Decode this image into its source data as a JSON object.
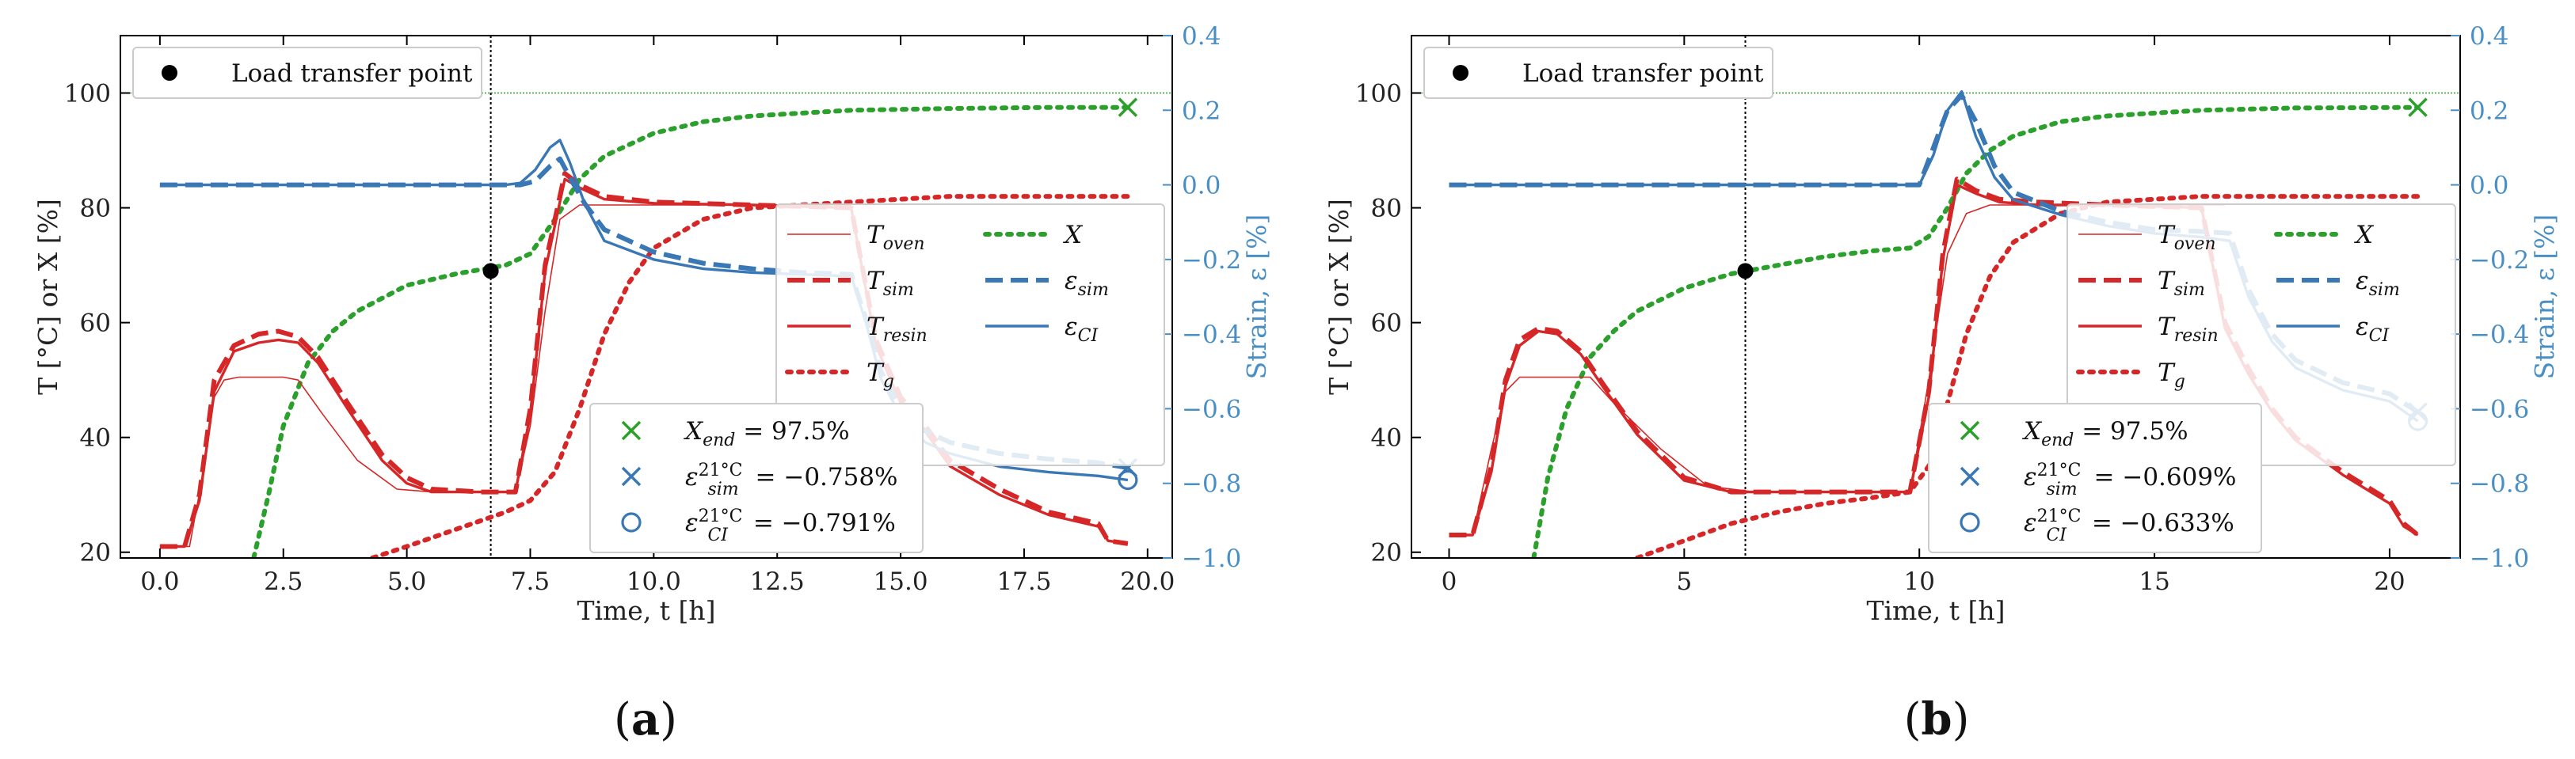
{
  "chart_data": [
    {
      "panel_label": "(a)",
      "type": "line",
      "xlabel": "Time, t [h]",
      "ylabel_left": "T [°C] or X [%]",
      "ylabel_right": "Strain, ε [%]",
      "xlim": [
        -0.8,
        20.5
      ],
      "ylim_left": [
        19,
        110
      ],
      "ylim_right": [
        -1.0,
        0.4
      ],
      "xticks": [
        0.0,
        2.5,
        5.0,
        7.5,
        10.0,
        12.5,
        15.0,
        17.5,
        20.0
      ],
      "xtick_labels": [
        "0.0",
        "2.5",
        "5.0",
        "7.5",
        "10.0",
        "12.5",
        "15.0",
        "17.5",
        "20.0"
      ],
      "yticks_left": [
        20,
        40,
        60,
        80,
        100
      ],
      "yticks_right": [
        -1.0,
        -0.8,
        -0.6,
        -0.4,
        -0.2,
        0.0,
        0.2,
        0.4
      ],
      "ytick_labels_right": [
        "−1.0",
        "−0.8",
        "−0.6",
        "−0.4",
        "−0.2",
        "0.0",
        "0.2",
        "0.4"
      ],
      "hline_y": 100,
      "load_transfer_t": 6.7,
      "load_transfer_value": 69,
      "legend_upper": [
        "Load transfer point"
      ],
      "series": [
        {
          "name": "T_oven",
          "axis": "left",
          "color": "#d62728",
          "style": "thin",
          "x": [
            0,
            0.6,
            0.9,
            1.1,
            1.3,
            1.6,
            2,
            2.5,
            2.8,
            3.3,
            4,
            4.8,
            5.5,
            6.5,
            7.2,
            7.5,
            7.8,
            8.1,
            8.5,
            9,
            10,
            12,
            14
          ],
          "y": [
            21,
            21,
            35,
            47,
            50,
            50.5,
            50.5,
            50.5,
            50,
            44,
            36,
            31,
            30.5,
            30.5,
            30.5,
            42,
            62,
            78,
            80.5,
            80.5,
            80.5,
            80.5,
            80.5
          ]
        },
        {
          "name": "T_sim",
          "axis": "left",
          "color": "#d62728",
          "style": "dashed",
          "x": [
            0,
            0.5,
            0.8,
            1.1,
            1.5,
            2,
            2.4,
            2.8,
            3.2,
            3.8,
            4.5,
            5,
            5.5,
            6.5,
            7.2,
            7.5,
            7.8,
            8.2,
            8.5,
            9,
            10,
            12,
            14,
            14.5,
            15,
            15.5,
            16,
            17,
            18,
            19,
            19.2,
            19.6
          ],
          "y": [
            21,
            21,
            30,
            50,
            56,
            58,
            58.5,
            57.5,
            54,
            46,
            37,
            33,
            31,
            30.5,
            30.5,
            45,
            70,
            86,
            84,
            82,
            81,
            80.5,
            80,
            57,
            47,
            42,
            36,
            31,
            27,
            25,
            22,
            21.5
          ]
        },
        {
          "name": "T_resin",
          "axis": "left",
          "color": "#d62728",
          "style": "solid",
          "x": [
            0,
            0.5,
            0.8,
            1.1,
            1.5,
            2,
            2.4,
            2.8,
            3.2,
            3.8,
            4.5,
            5,
            5.5,
            6.5,
            7.2,
            7.5,
            7.8,
            8.2,
            8.5,
            9,
            10,
            12,
            14,
            14.5,
            15,
            15.5,
            16,
            17,
            18,
            19,
            19.2,
            19.6
          ],
          "y": [
            21,
            21,
            29,
            48,
            55,
            56.5,
            57,
            56.5,
            53,
            45,
            36,
            32,
            30.5,
            30.5,
            30.5,
            44,
            69,
            85,
            83.5,
            81.5,
            80.8,
            80.5,
            80,
            56,
            46,
            41,
            35,
            30,
            26.5,
            24.5,
            22,
            21.5
          ]
        },
        {
          "name": "T_g",
          "axis": "left",
          "color": "#d62728",
          "style": "dotted",
          "x": [
            4.3,
            5,
            6,
            7,
            7.5,
            8,
            8.5,
            9,
            9.5,
            10,
            11,
            12,
            14,
            16,
            18,
            19.6
          ],
          "y": [
            19,
            21,
            24,
            27,
            29,
            34,
            45,
            58,
            67,
            73,
            78,
            80,
            81,
            82,
            82,
            82
          ]
        },
        {
          "name": "X",
          "axis": "left",
          "color": "#2ca02c",
          "style": "dotted",
          "x": [
            1.9,
            2.2,
            2.5,
            3,
            3.5,
            4,
            5,
            6,
            7,
            7.5,
            8,
            8.5,
            9,
            10,
            11,
            12,
            14,
            16,
            18,
            19.6
          ],
          "y": [
            19,
            30,
            42,
            53,
            58.5,
            62,
            66.5,
            68.5,
            70,
            72,
            78,
            85,
            89,
            93,
            95,
            96,
            97,
            97.3,
            97.5,
            97.5
          ]
        },
        {
          "name": "eps_sim",
          "axis": "right",
          "color": "#3a78b5",
          "style": "dashed",
          "x": [
            0,
            2,
            4,
            6,
            7,
            7.3,
            7.6,
            7.9,
            8.1,
            8.3,
            8.6,
            9,
            10,
            11,
            12,
            13,
            14,
            14.3,
            14.6,
            15,
            15.5,
            16,
            17,
            18,
            19,
            19.6
          ],
          "y": [
            0,
            0,
            0,
            0,
            0,
            0,
            0.01,
            0.05,
            0.07,
            0.02,
            -0.05,
            -0.12,
            -0.18,
            -0.21,
            -0.225,
            -0.235,
            -0.24,
            -0.36,
            -0.5,
            -0.6,
            -0.66,
            -0.69,
            -0.72,
            -0.735,
            -0.745,
            -0.758
          ]
        },
        {
          "name": "eps_CI",
          "axis": "right",
          "color": "#3a78b5",
          "style": "solid",
          "x": [
            0,
            2,
            4,
            6,
            7,
            7.3,
            7.6,
            7.9,
            8.1,
            8.3,
            8.6,
            9,
            10,
            11,
            12,
            13,
            14,
            14.3,
            14.6,
            15,
            15.5,
            16,
            17,
            18,
            19,
            19.6
          ],
          "y": [
            0,
            0,
            0,
            0,
            0,
            0.005,
            0.04,
            0.1,
            0.12,
            0.06,
            -0.05,
            -0.15,
            -0.2,
            -0.225,
            -0.235,
            -0.24,
            -0.245,
            -0.37,
            -0.52,
            -0.62,
            -0.69,
            -0.72,
            -0.755,
            -0.77,
            -0.78,
            -0.791
          ]
        }
      ],
      "endpoints": [
        {
          "label": "X_end = 97.5%",
          "axis": "left",
          "x": 19.6,
          "y": 97.5,
          "marker": "x",
          "color": "#2ca02c"
        },
        {
          "label": "ε_sim 21°C = −0.758%",
          "axis": "right",
          "x": 19.6,
          "y": -0.758,
          "marker": "x",
          "color": "#3a78b5"
        },
        {
          "label": "ε_CI 21°C = −0.791%",
          "axis": "right",
          "x": 19.6,
          "y": -0.791,
          "marker": "o",
          "color": "#3a78b5"
        }
      ]
    },
    {
      "panel_label": "(b)",
      "type": "line",
      "xlabel": "Time, t [h]",
      "ylabel_left": "T [°C] or X [%]",
      "ylabel_right": "Strain, ε [%]",
      "xlim": [
        -0.8,
        21.5
      ],
      "ylim_left": [
        19,
        110
      ],
      "ylim_right": [
        -1.0,
        0.4
      ],
      "xticks": [
        0,
        5,
        10,
        15,
        20
      ],
      "xtick_labels": [
        "0",
        "5",
        "10",
        "15",
        "20"
      ],
      "yticks_left": [
        20,
        40,
        60,
        80,
        100
      ],
      "yticks_right": [
        -1.0,
        -0.8,
        -0.6,
        -0.4,
        -0.2,
        0.0,
        0.2,
        0.4
      ],
      "ytick_labels_right": [
        "−1.0",
        "−0.8",
        "−0.6",
        "−0.4",
        "−0.2",
        "0.0",
        "0.2",
        "0.4"
      ],
      "hline_y": 100,
      "load_transfer_t": 6.3,
      "load_transfer_value": 69,
      "legend_upper": [
        "Load transfer point"
      ],
      "series": [
        {
          "name": "T_oven",
          "axis": "left",
          "color": "#d62728",
          "style": "thin",
          "x": [
            0,
            0.5,
            0.9,
            1.2,
            1.5,
            2,
            2.5,
            3,
            3.5,
            4.5,
            5.5,
            6.5,
            9,
            9.8,
            10.2,
            10.6,
            11,
            11.5,
            12,
            14,
            16.5
          ],
          "y": [
            23,
            23,
            38,
            48,
            50.5,
            50.5,
            50.5,
            50.5,
            46,
            38,
            31.5,
            30.5,
            30.5,
            30.5,
            50,
            72,
            79,
            80.5,
            80.5,
            80.5,
            80.5
          ]
        },
        {
          "name": "T_sim",
          "axis": "left",
          "color": "#d62728",
          "style": "dashed",
          "x": [
            0,
            0.5,
            0.9,
            1.2,
            1.5,
            1.9,
            2.3,
            2.8,
            3.3,
            4,
            5,
            6,
            9,
            9.8,
            10.2,
            10.5,
            10.8,
            11.2,
            11.7,
            12.5,
            14,
            16,
            16.5,
            17,
            17.5,
            18,
            19,
            20,
            20.3,
            20.6
          ],
          "y": [
            23,
            23,
            35,
            50,
            57,
            59,
            58.5,
            55,
            49,
            41,
            33,
            30.5,
            30.5,
            30.5,
            48,
            72,
            85,
            83,
            81.5,
            81,
            80.5,
            80,
            60,
            52,
            45,
            40,
            34,
            29,
            25,
            23
          ]
        },
        {
          "name": "T_resin",
          "axis": "left",
          "color": "#d62728",
          "style": "solid",
          "x": [
            0,
            0.5,
            0.9,
            1.2,
            1.5,
            1.9,
            2.3,
            2.8,
            3.3,
            4,
            5,
            6,
            9,
            9.8,
            10.2,
            10.5,
            10.8,
            11.2,
            11.7,
            12.5,
            14,
            16,
            16.5,
            17,
            17.5,
            18,
            19,
            20,
            20.3,
            20.6
          ],
          "y": [
            23,
            23,
            34,
            49,
            56,
            58.5,
            58,
            54.5,
            48.5,
            40.5,
            32.5,
            30.5,
            30.5,
            30.5,
            47,
            71,
            84,
            82.5,
            81,
            80.5,
            80.5,
            80,
            59,
            51,
            44.5,
            39.5,
            33.5,
            28.5,
            24.5,
            23
          ]
        },
        {
          "name": "T_g",
          "axis": "left",
          "color": "#d62728",
          "style": "dotted",
          "x": [
            4,
            5,
            6,
            7,
            8,
            9,
            9.8,
            10.2,
            10.6,
            11,
            11.5,
            12,
            13,
            14,
            16,
            18,
            20.6
          ],
          "y": [
            19,
            22,
            25,
            27,
            28.5,
            29.5,
            30.5,
            35,
            46,
            58,
            68,
            74,
            79,
            81,
            82,
            82,
            82
          ]
        },
        {
          "name": "X",
          "axis": "left",
          "color": "#2ca02c",
          "style": "dotted",
          "x": [
            1.8,
            2.1,
            2.5,
            3,
            3.5,
            4,
            5,
            6,
            7,
            8,
            9,
            9.8,
            10.2,
            10.6,
            11,
            11.5,
            12,
            13,
            14,
            16,
            18,
            20.6
          ],
          "y": [
            19,
            33,
            45,
            54,
            58.5,
            62,
            66,
            68.5,
            70,
            71.5,
            72.5,
            73,
            75,
            80,
            86,
            90,
            92.5,
            95,
            96,
            97,
            97.4,
            97.5
          ]
        },
        {
          "name": "eps_sim",
          "axis": "right",
          "color": "#3a78b5",
          "style": "dashed",
          "x": [
            0,
            2,
            4,
            6,
            8,
            9.5,
            10,
            10.3,
            10.6,
            10.9,
            11.2,
            11.6,
            12,
            13,
            14,
            15,
            16,
            16.6,
            17,
            17.5,
            18,
            19,
            20,
            20.6
          ],
          "y": [
            0,
            0,
            0,
            0,
            0,
            0,
            0,
            0.1,
            0.2,
            0.24,
            0.17,
            0.05,
            -0.02,
            -0.07,
            -0.1,
            -0.12,
            -0.125,
            -0.13,
            -0.28,
            -0.4,
            -0.47,
            -0.53,
            -0.56,
            -0.609
          ]
        },
        {
          "name": "eps_CI",
          "axis": "right",
          "color": "#3a78b5",
          "style": "solid",
          "x": [
            0,
            2,
            4,
            6,
            8,
            9.5,
            10,
            10.3,
            10.6,
            10.9,
            11.2,
            11.6,
            12,
            13,
            14,
            15,
            16,
            16.6,
            17,
            17.5,
            18,
            19,
            20,
            20.6
          ],
          "y": [
            0,
            0,
            0,
            0,
            0,
            0,
            0,
            0.08,
            0.2,
            0.25,
            0.13,
            0.02,
            -0.04,
            -0.08,
            -0.11,
            -0.13,
            -0.14,
            -0.15,
            -0.3,
            -0.42,
            -0.49,
            -0.55,
            -0.58,
            -0.633
          ]
        }
      ],
      "endpoints": [
        {
          "label": "X_end = 97.5%",
          "axis": "left",
          "x": 20.6,
          "y": 97.5,
          "marker": "x",
          "color": "#2ca02c"
        },
        {
          "label": "ε_sim 21°C = −0.609%",
          "axis": "right",
          "x": 20.6,
          "y": -0.609,
          "marker": "x",
          "color": "#3a78b5"
        },
        {
          "label": "ε_CI 21°C = −0.633%",
          "axis": "right",
          "x": 20.6,
          "y": -0.633,
          "marker": "o",
          "color": "#3a78b5"
        }
      ]
    }
  ],
  "legend_series": [
    {
      "key": "T_oven",
      "label": "T",
      "sub": "oven"
    },
    {
      "key": "T_sim",
      "label": "T",
      "sub": "sim"
    },
    {
      "key": "T_resin",
      "label": "T",
      "sub": "resin"
    },
    {
      "key": "T_g",
      "label": "T",
      "sub": "g"
    },
    {
      "key": "X",
      "label": "X",
      "sub": ""
    },
    {
      "key": "eps_sim",
      "label": "ε",
      "sub": "sim"
    },
    {
      "key": "eps_CI",
      "label": "ε",
      "sub": "CI"
    }
  ],
  "legend_end": [
    {
      "label": "X",
      "sub": "end",
      "sup": "",
      "value": " = 97.5%"
    },
    {
      "label": "ε",
      "sub": "sim",
      "sup": "21°C",
      "value": " = −0.758%"
    },
    {
      "label": "ε",
      "sub": "CI",
      "sup": "21°C",
      "value": " = −0.791%"
    }
  ],
  "legend_end_b": [
    {
      "label": "X",
      "sub": "end",
      "sup": "",
      "value": " = 97.5%"
    },
    {
      "label": "ε",
      "sub": "sim",
      "sup": "21°C",
      "value": " = −0.609%"
    },
    {
      "label": "ε",
      "sub": "CI",
      "sup": "21°C",
      "value": " = −0.633%"
    }
  ],
  "colors": {
    "temperature": "#d62728",
    "conversion": "#2ca02c",
    "strain": "#3a78b5",
    "right_axis": "#4a8fc4"
  }
}
